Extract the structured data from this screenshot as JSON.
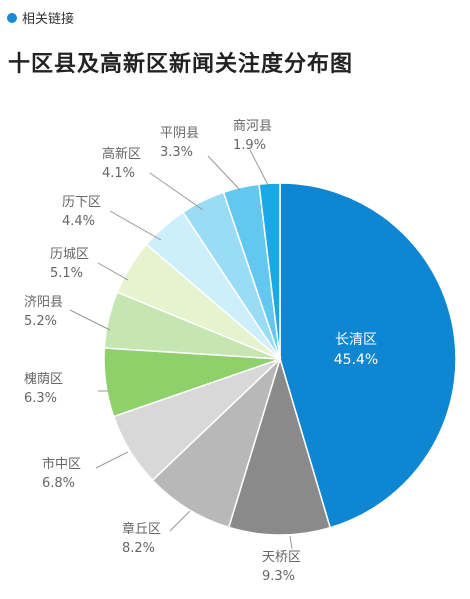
{
  "header": {
    "tag_label": "相关链接"
  },
  "chart_data": {
    "type": "pie",
    "title": "十区县及高新区新闻关注度分布图",
    "slices": [
      {
        "label": "长清区",
        "value": 45.4,
        "display": "45.4%",
        "color": "#0e86d1"
      },
      {
        "label": "天桥区",
        "value": 9.3,
        "display": "9.3%",
        "color": "#8a8a8a"
      },
      {
        "label": "章丘区",
        "value": 8.2,
        "display": "8.2%",
        "color": "#b8b8b8"
      },
      {
        "label": "市中区",
        "value": 6.8,
        "display": "6.8%",
        "color": "#d8d8d8"
      },
      {
        "label": "槐荫区",
        "value": 6.3,
        "display": "6.3%",
        "color": "#8ed06a"
      },
      {
        "label": "济阳县",
        "value": 5.2,
        "display": "5.2%",
        "color": "#c5e6b0"
      },
      {
        "label": "历城区",
        "value": 5.1,
        "display": "5.1%",
        "color": "#e5f3cf"
      },
      {
        "label": "历下区",
        "value": 4.4,
        "display": "4.4%",
        "color": "#cdeefb"
      },
      {
        "label": "高新区",
        "value": 4.1,
        "display": "4.1%",
        "color": "#9adcf5"
      },
      {
        "label": "平阴县",
        "value": 3.3,
        "display": "3.3%",
        "color": "#62c8f0"
      },
      {
        "label": "商河县",
        "value": 1.9,
        "display": "1.9%",
        "color": "#1aa9e8"
      }
    ]
  }
}
